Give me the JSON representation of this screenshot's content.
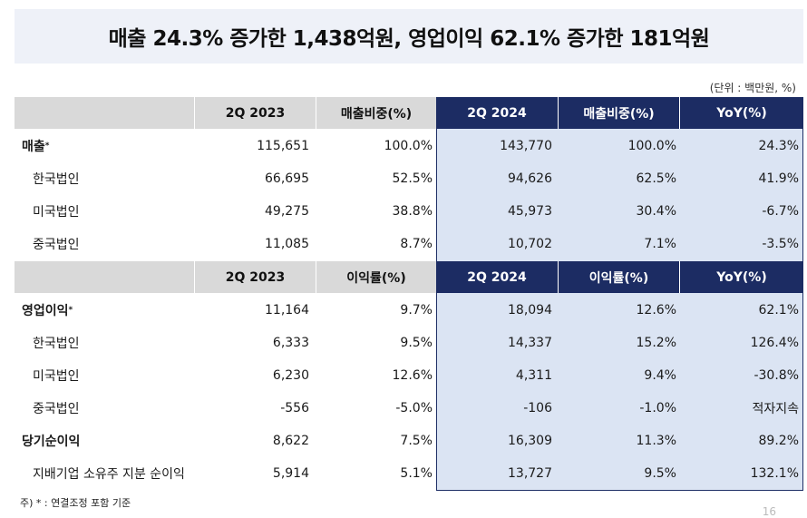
{
  "title": "매출 24.3% 증가한 1,438억원, 영업이익 62.1% 증가한 181억원",
  "unit": "(단위 : 백만원, %)",
  "sales_header": [
    "2Q 2023",
    "매출비중(%)",
    "2Q 2024",
    "매출비중(%)",
    "YoY(%)"
  ],
  "sales_rows": [
    {
      "label": "매출",
      "sup": "*",
      "cols": [
        "115,651",
        "100.0%",
        "143,770",
        "100.0%",
        "24.3%"
      ]
    },
    {
      "label": "한국법인",
      "cols": [
        "66,695",
        "52.5%",
        "94,626",
        "62.5%",
        "41.9%"
      ]
    },
    {
      "label": "미국법인",
      "cols": [
        "49,275",
        "38.8%",
        "45,973",
        "30.4%",
        "-6.7%"
      ]
    },
    {
      "label": "중국법인",
      "cols": [
        "11,085",
        "8.7%",
        "10,702",
        "7.1%",
        "-3.5%"
      ]
    }
  ],
  "profit_header": [
    "2Q 2023",
    "이익률(%)",
    "2Q 2024",
    "이익률(%)",
    "YoY(%)"
  ],
  "profit_rows": [
    {
      "label": "영업이익",
      "sup": "*",
      "cols": [
        "11,164",
        "9.7%",
        "18,094",
        "12.6%",
        "62.1%"
      ]
    },
    {
      "label": "한국법인",
      "cols": [
        "6,333",
        "9.5%",
        "14,337",
        "15.2%",
        "126.4%"
      ]
    },
    {
      "label": "미국법인",
      "cols": [
        "6,230",
        "12.6%",
        "4,311",
        "9.4%",
        "-30.8%"
      ]
    },
    {
      "label": "중국법인",
      "cols": [
        "-556",
        "-5.0%",
        "-106",
        "-1.0%",
        "적자지속"
      ]
    },
    {
      "label": "당기순이익",
      "cols": [
        "8,622",
        "7.5%",
        "16,309",
        "11.3%",
        "89.2%"
      ]
    },
    {
      "label": "지배기업 소유주 지분 순이익",
      "cols": [
        "5,914",
        "5.1%",
        "13,727",
        "9.5%",
        "132.1%"
      ]
    }
  ],
  "footnote": "주) * : 연결조정 포함 기준",
  "page_number": "16",
  "colors": {
    "navy": "#1c2c63",
    "highlight": "#dbe4f3",
    "header_gray": "#d9d9d9",
    "title_band": "#eef1f8"
  }
}
